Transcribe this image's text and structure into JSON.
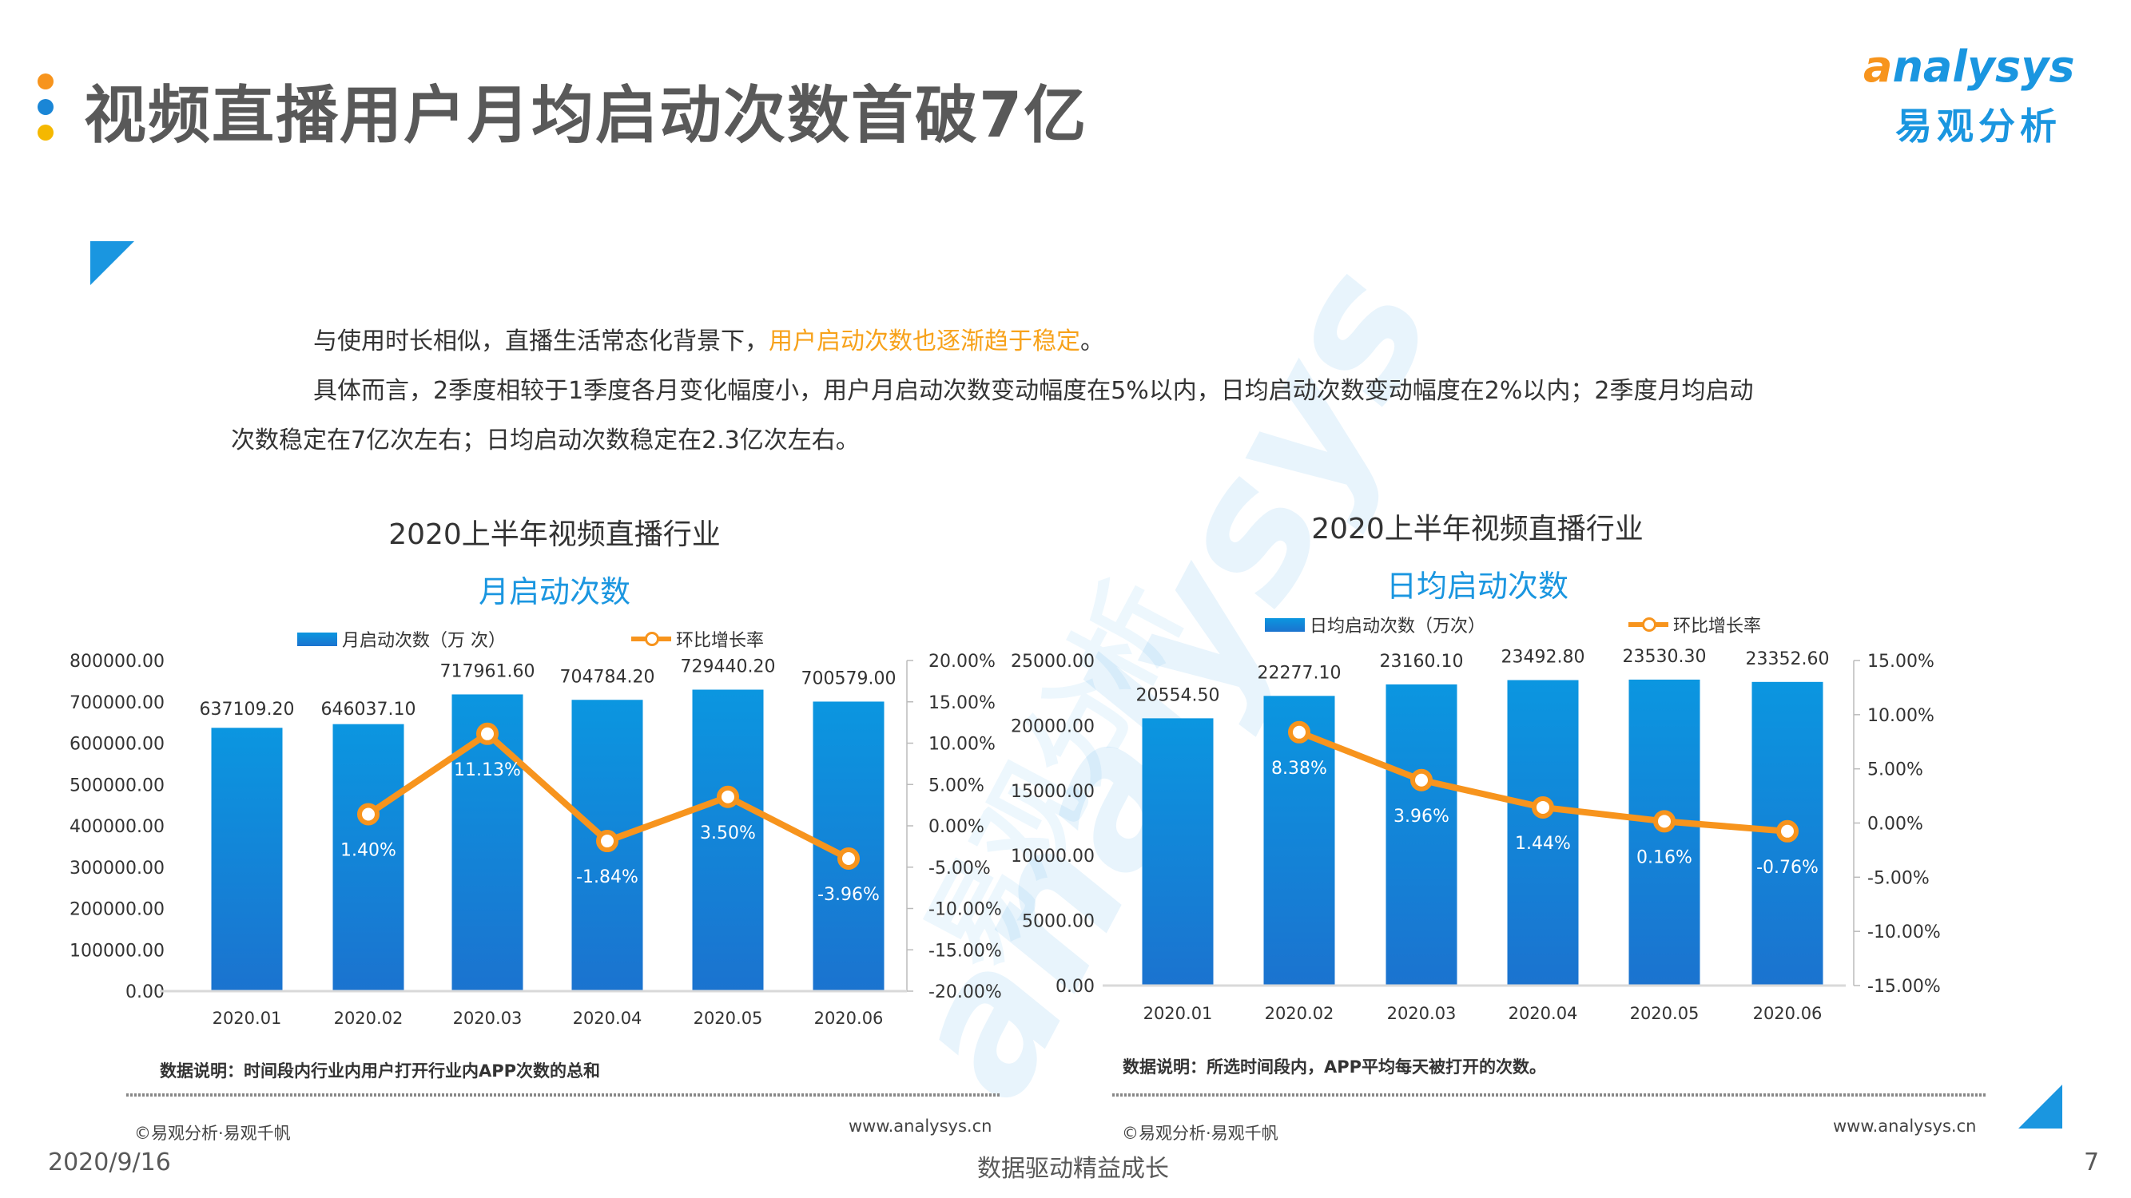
{
  "header": {
    "title": "视频直播用户月均启动次数首破7亿",
    "bullet_colors": [
      "#f7941d",
      "#1a86d6",
      "#f5b800"
    ],
    "logo_en_a": "a",
    "logo_en_rest": "nalysys",
    "logo_cn": "易观分析"
  },
  "body": {
    "line1_prefix": "与使用时长相似，直播生活常态化背景下，",
    "line1_highlight": "用户启动次数也逐渐趋于稳定",
    "line1_suffix": "。",
    "line2": "具体而言，2季度相较于1季度各月变化幅度小，用户月启动次数变动幅度在5%以内，日均启动次数变动幅度在2%以内；2季度月均启动",
    "line3": "次数稳定在7亿次左右；日均启动次数稳定在2.3亿次左右。",
    "highlight_color": "#f7a21b"
  },
  "left_panel": {
    "title": "2020上半年视频直播行业",
    "subtitle": "月启动次数",
    "legend_bar": "月启动次数（万 次）",
    "legend_line": "环比增长率",
    "note": "数据说明：时间段内行业内用户打开行业内APP次数的总和",
    "copyright": "©易观分析·易观千帆",
    "website": "www.analysys.cn"
  },
  "right_panel": {
    "title": "2020上半年视频直播行业",
    "subtitle": "日均启动次数",
    "legend_bar": "日均启动次数（万次）",
    "legend_line": "环比增长率",
    "note": "数据说明：所选时间段内，APP平均每天被打开的次数。",
    "copyright": "©易观分析·易观千帆",
    "website": "www.analysys.cn"
  },
  "footer": {
    "date": "2020/9/16",
    "slogan": "数据驱动精益成长",
    "page_number": "7"
  },
  "watermark": {
    "text_en": "analysys",
    "text_cn": "易观分析"
  },
  "chart_data": [
    {
      "type": "bar",
      "title": "2020上半年视频直播行业 月启动次数",
      "categories": [
        "2020.01",
        "2020.02",
        "2020.03",
        "2020.04",
        "2020.05",
        "2020.06"
      ],
      "series": [
        {
          "name": "月启动次数（万 次）",
          "type": "bar",
          "axis": "left",
          "values": [
            637109.2,
            646037.1,
            717961.6,
            704784.2,
            729440.2,
            700579.0
          ],
          "labels": [
            "637109.20",
            "646037.10",
            "717961.60",
            "704784.20",
            "729440.20",
            "700579.00"
          ]
        },
        {
          "name": "环比增长率",
          "type": "line",
          "axis": "right",
          "values": [
            null,
            1.4,
            11.13,
            -1.84,
            3.5,
            -3.96
          ],
          "labels": [
            "",
            "1.40%",
            "11.13%",
            "-1.84%",
            "3.50%",
            "-3.96%"
          ]
        }
      ],
      "ylim": [
        0,
        800000
      ],
      "yticks": [
        "800000.00",
        "700000.00",
        "600000.00",
        "500000.00",
        "400000.00",
        "300000.00",
        "200000.00",
        "100000.00",
        "0.00"
      ],
      "y2lim": [
        -20,
        20
      ],
      "y2ticks": [
        "20.00%",
        "15.00%",
        "10.00%",
        "5.00%",
        "0.00%",
        "-5.00%",
        "-10.00%",
        "-15.00%",
        "-20.00%"
      ],
      "bar_color_top": "#0b96e0",
      "bar_color_bottom": "#1b73cf",
      "line_color": "#f7941d",
      "legend_position": "top",
      "grid": false
    },
    {
      "type": "bar",
      "title": "2020上半年视频直播行业 日均启动次数",
      "categories": [
        "2020.01",
        "2020.02",
        "2020.03",
        "2020.04",
        "2020.05",
        "2020.06"
      ],
      "series": [
        {
          "name": "日均启动次数（万次）",
          "type": "bar",
          "axis": "left",
          "values": [
            20554.5,
            22277.1,
            23160.1,
            23492.8,
            23530.3,
            23352.6
          ],
          "labels": [
            "20554.50",
            "22277.10",
            "23160.10",
            "23492.80",
            "23530.30",
            "23352.60"
          ]
        },
        {
          "name": "环比增长率",
          "type": "line",
          "axis": "right",
          "values": [
            null,
            8.38,
            3.96,
            1.44,
            0.16,
            -0.76
          ],
          "labels": [
            "",
            "8.38%",
            "3.96%",
            "1.44%",
            "0.16%",
            "-0.76%"
          ]
        }
      ],
      "ylim": [
        0,
        25000
      ],
      "yticks": [
        "25000.00",
        "20000.00",
        "15000.00",
        "10000.00",
        "5000.00",
        "0.00"
      ],
      "y2lim": [
        -15,
        15
      ],
      "y2ticks": [
        "15.00%",
        "10.00%",
        "5.00%",
        "0.00%",
        "-5.00%",
        "-10.00%",
        "-15.00%"
      ],
      "bar_color_top": "#0b96e0",
      "bar_color_bottom": "#1b73cf",
      "line_color": "#f7941d",
      "legend_position": "top",
      "grid": false
    }
  ]
}
